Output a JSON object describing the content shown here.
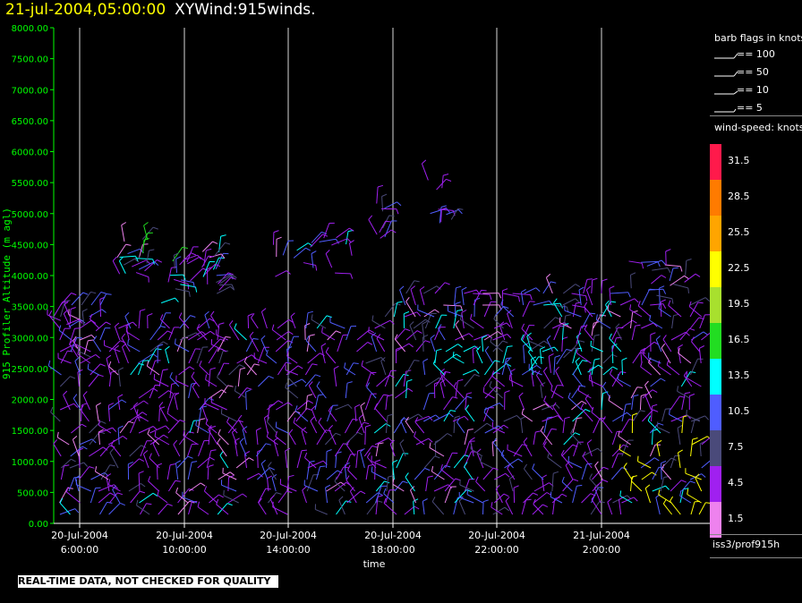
{
  "title": {
    "date": "21-jul-2004,05:00:00",
    "name": "XYWind:915winds."
  },
  "chart_data": {
    "type": "wind-barb",
    "ylabel": "915 Profiler Altitude (m agl)",
    "xlabel": "time",
    "ylim": [
      0,
      8000
    ],
    "yticks": [
      "0.00",
      "500.00",
      "1000.00",
      "1500.00",
      "2000.00",
      "2500.00",
      "3000.00",
      "3500.00",
      "4000.00",
      "4500.00",
      "5000.00",
      "5500.00",
      "6000.00",
      "6500.00",
      "7000.00",
      "7500.00",
      "8000.00"
    ],
    "xlim_hours": [
      4.4,
      5.4
    ],
    "xticks": [
      {
        "label1": "20-Jul-2004",
        "label2": "6:00:00"
      },
      {
        "label1": "20-Jul-2004",
        "label2": "10:00:00"
      },
      {
        "label1": "20-Jul-2004",
        "label2": "14:00:00"
      },
      {
        "label1": "20-Jul-2004",
        "label2": "18:00:00"
      },
      {
        "label1": "20-Jul-2004",
        "label2": "22:00:00"
      },
      {
        "label1": "21-Jul-2004",
        "label2": "2:00:00"
      }
    ],
    "grid": "vertical lines at time ticks",
    "barb_legend": {
      "title": "barb flags in knots",
      "items": [
        "== 100",
        "== 50",
        "== 10",
        "== 5"
      ]
    },
    "colorbar": {
      "title": "wind-speed: knots",
      "bins": [
        {
          "label": "31.5",
          "color": "#ff1a4b"
        },
        {
          "label": "28.5",
          "color": "#ff7b00"
        },
        {
          "label": "25.5",
          "color": "#ffa500"
        },
        {
          "label": "22.5",
          "color": "#ffff00"
        },
        {
          "label": "19.5",
          "color": "#a8e02e"
        },
        {
          "label": "16.5",
          "color": "#22dd22"
        },
        {
          "label": "13.5",
          "color": "#00ffff"
        },
        {
          "label": "10.5",
          "color": "#4f5dff"
        },
        {
          "label": "7.5",
          "color": "#4a4a7a"
        },
        {
          "label": "4.5",
          "color": "#a020f0"
        },
        {
          "label": "1.5",
          "color": "#ee82ee"
        }
      ]
    },
    "source_label": "iss3/prof915h"
  },
  "notice": "REAL-TIME DATA, NOT CHECKED FOR QUALITY",
  "colors": {
    "axis": "#00ff00",
    "title_date": "#ffff00",
    "grid": "#ffffff"
  }
}
